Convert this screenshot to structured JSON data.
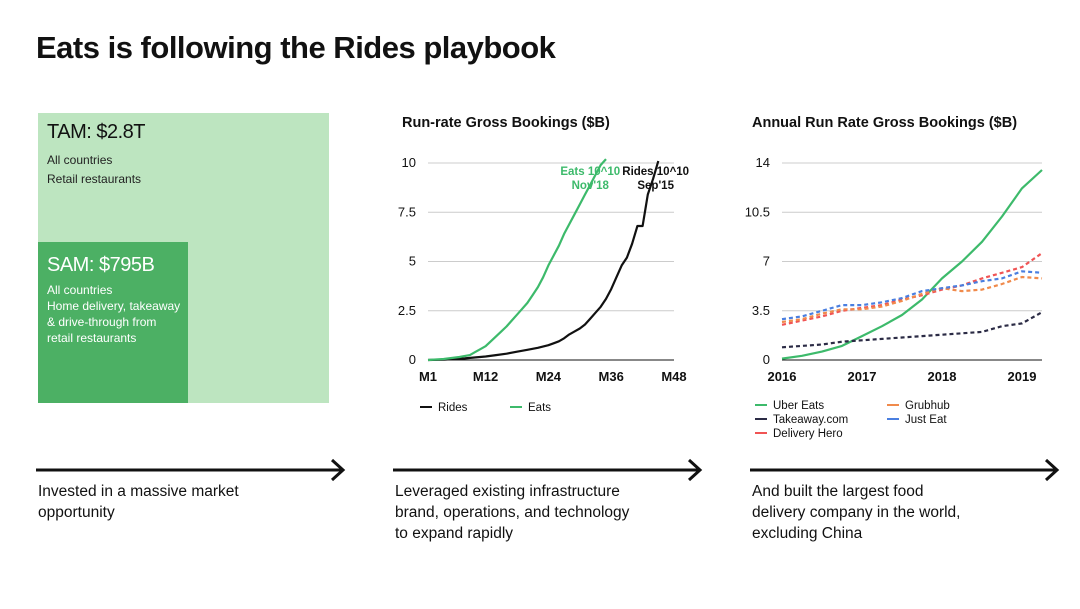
{
  "title": "Eats is following the Rides playbook",
  "tam": {
    "heading": "TAM: $2.8T",
    "lines": [
      "All countries",
      "Retail restaurants"
    ]
  },
  "sam": {
    "heading": "SAM: $795B",
    "lines": [
      "All countries",
      "Home delivery, takeaway & drive-through from retail restaurants"
    ]
  },
  "colors": {
    "tam_bg": "#bde5c0",
    "sam_bg": "#4cb064",
    "rides": "#111111",
    "eats": "#3dba6b",
    "uber_eats": "#3dba6b",
    "takeaway": "#2b2b45",
    "delivery_hero": "#f05454",
    "grubhub": "#f08a4b",
    "just_eat": "#4a7fe0",
    "grid": "#cccccc"
  },
  "captions": [
    "Invested in a massive market opportunity",
    "Leveraged existing infrastructure brand, operations, and technology to expand rapidly",
    "And built the largest food delivery company in the world, excluding China"
  ],
  "chart_data": [
    {
      "type": "line",
      "title": "Run-rate Gross Bookings ($B)",
      "xlabel": "",
      "ylabel": "",
      "xlim": [
        1,
        48
      ],
      "ylim": [
        0,
        10
      ],
      "yticks": [
        0,
        2.5,
        5,
        7.5,
        10
      ],
      "ytick_labels": [
        "0",
        "2.5",
        "5",
        "7.5",
        "10"
      ],
      "xticks": [
        1,
        12,
        24,
        36,
        48
      ],
      "xtick_labels": [
        "M1",
        "M12",
        "M24",
        "M36",
        "M48"
      ],
      "grid": true,
      "legend_position": "bottom",
      "series": [
        {
          "name": "Rides",
          "color": "#111111",
          "x": [
            1,
            4,
            8,
            12,
            14,
            16,
            18,
            20,
            22,
            24,
            25,
            26,
            27,
            28,
            29,
            30,
            31,
            32,
            33,
            34,
            35,
            36,
            37,
            38,
            39,
            40,
            41,
            42,
            42.5,
            43,
            44,
            45
          ],
          "y": [
            0,
            0.02,
            0.08,
            0.18,
            0.25,
            0.32,
            0.42,
            0.52,
            0.62,
            0.75,
            0.85,
            0.95,
            1.1,
            1.3,
            1.45,
            1.6,
            1.8,
            2.1,
            2.4,
            2.7,
            3.1,
            3.6,
            4.2,
            4.8,
            5.2,
            5.9,
            6.8,
            6.8,
            7.6,
            8.4,
            9.2,
            10.1
          ]
        },
        {
          "name": "Eats",
          "color": "#3dba6b",
          "x": [
            1,
            4,
            7,
            9,
            10,
            11,
            12,
            13,
            14,
            15,
            16,
            17,
            18,
            19,
            20,
            21,
            22,
            23,
            24,
            25,
            26,
            27,
            28,
            29,
            30,
            31,
            32,
            33,
            34,
            35
          ],
          "y": [
            0,
            0.05,
            0.15,
            0.25,
            0.4,
            0.55,
            0.7,
            0.95,
            1.2,
            1.45,
            1.7,
            2.0,
            2.3,
            2.6,
            2.9,
            3.3,
            3.7,
            4.2,
            4.8,
            5.3,
            5.8,
            6.4,
            6.9,
            7.4,
            7.9,
            8.4,
            8.9,
            9.4,
            9.9,
            10.2
          ]
        }
      ],
      "annotations": [
        {
          "text": [
            "Eats 10^10",
            "Nov'18"
          ],
          "series": "Eats",
          "x": 32,
          "y": 9.5
        },
        {
          "text": [
            "Rides 10^10",
            "Sep'15"
          ],
          "series": "Rides",
          "x": 44.5,
          "y": 9.5
        }
      ]
    },
    {
      "type": "line",
      "title": "Annual Run Rate Gross Bookings ($B)",
      "xlabel": "",
      "ylabel": "",
      "xlim": [
        2016,
        2019.25
      ],
      "ylim": [
        0,
        14
      ],
      "yticks": [
        0,
        3.5,
        7,
        10.5,
        14
      ],
      "ytick_labels": [
        "0",
        "3.5",
        "7",
        "10.5",
        "14"
      ],
      "xticks": [
        2016,
        2017,
        2018,
        2019
      ],
      "xtick_labels": [
        "2016",
        "2017",
        "2018",
        "2019"
      ],
      "grid": true,
      "legend_position": "bottom",
      "series": [
        {
          "name": "Uber Eats",
          "color": "#3dba6b",
          "style": "solid",
          "x": [
            2016,
            2016.25,
            2016.5,
            2016.75,
            2017,
            2017.25,
            2017.5,
            2017.75,
            2018,
            2018.25,
            2018.5,
            2018.75,
            2019,
            2019.25
          ],
          "y": [
            0.1,
            0.3,
            0.6,
            1.0,
            1.7,
            2.4,
            3.2,
            4.3,
            5.8,
            7.0,
            8.4,
            10.2,
            12.2,
            13.5
          ]
        },
        {
          "name": "Takeaway.com",
          "color": "#2b2b45",
          "style": "dashed",
          "x": [
            2016,
            2016.25,
            2016.5,
            2016.75,
            2017,
            2017.25,
            2017.5,
            2017.75,
            2018,
            2018.25,
            2018.5,
            2018.75,
            2019,
            2019.25
          ],
          "y": [
            0.9,
            1.0,
            1.1,
            1.3,
            1.4,
            1.5,
            1.6,
            1.7,
            1.8,
            1.9,
            2.0,
            2.4,
            2.6,
            3.4
          ]
        },
        {
          "name": "Delivery Hero",
          "color": "#f05454",
          "style": "dashed",
          "x": [
            2016,
            2016.25,
            2016.5,
            2016.75,
            2017,
            2017.25,
            2017.5,
            2017.75,
            2018,
            2018.25,
            2018.5,
            2018.75,
            2019,
            2019.25
          ],
          "y": [
            2.5,
            2.8,
            3.1,
            3.5,
            3.7,
            3.9,
            4.3,
            4.6,
            5.0,
            5.3,
            5.8,
            6.2,
            6.6,
            7.6
          ]
        },
        {
          "name": "Grubhub",
          "color": "#f08a4b",
          "style": "dashed",
          "x": [
            2016,
            2016.25,
            2016.5,
            2016.75,
            2017,
            2017.25,
            2017.5,
            2017.75,
            2018,
            2018.25,
            2018.5,
            2018.75,
            2019,
            2019.25
          ],
          "y": [
            2.7,
            2.9,
            3.3,
            3.6,
            3.6,
            3.8,
            4.2,
            4.7,
            5.1,
            4.9,
            5.0,
            5.4,
            5.9,
            5.8
          ]
        },
        {
          "name": "Just Eat",
          "color": "#4a7fe0",
          "style": "dashed",
          "x": [
            2016,
            2016.25,
            2016.5,
            2016.75,
            2017,
            2017.25,
            2017.5,
            2017.75,
            2018,
            2018.25,
            2018.5,
            2018.75,
            2019,
            2019.25
          ],
          "y": [
            2.9,
            3.1,
            3.5,
            3.9,
            3.9,
            4.1,
            4.4,
            4.9,
            5.1,
            5.3,
            5.6,
            5.8,
            6.3,
            6.2
          ]
        }
      ]
    }
  ]
}
